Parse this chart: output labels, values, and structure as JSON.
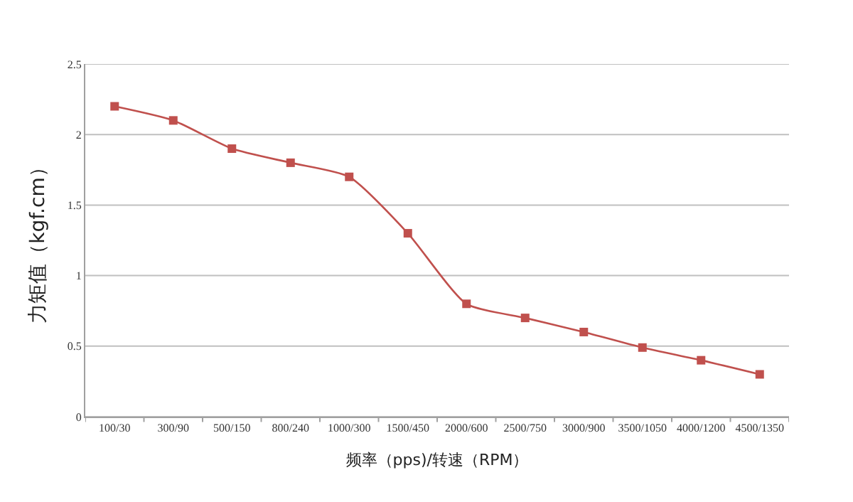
{
  "chart_data": {
    "type": "line",
    "xlabel": "频率（pps)/转速（RPM）",
    "ylabel": "力矩值（kgf.cm）",
    "categories": [
      "100/30",
      "300/90",
      "500/150",
      "800/240",
      "1000/300",
      "1500/450",
      "2000/600",
      "2500/750",
      "3000/900",
      "3500/1050",
      "4000/1200",
      "4500/1350"
    ],
    "series": [
      {
        "color": "#c0504d",
        "values": [
          2.2,
          2.1,
          1.9,
          1.8,
          1.7,
          1.3,
          0.8,
          0.7,
          0.6,
          0.49,
          0.4,
          0.3
        ]
      }
    ],
    "ylim": [
      0,
      2.5
    ],
    "yticks": [
      0,
      0.5,
      1,
      1.5,
      2,
      2.5
    ],
    "grid": "y",
    "marker": "square",
    "line_style": "solid"
  }
}
